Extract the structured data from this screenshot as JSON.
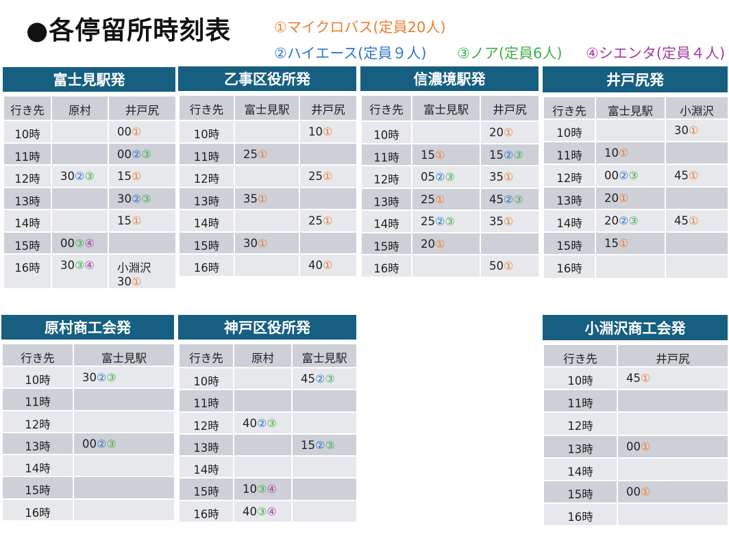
{
  "title": "●各停留所時刻表",
  "legend": [
    {
      "mark": "①",
      "label": "マイクロバス(定員20人)",
      "color": "#ed7d31"
    },
    {
      "mark": "②",
      "label": "ハイエース(定員９人)",
      "color": "#2f74c8"
    },
    {
      "mark": "③",
      "label": "ノア(定員6人)",
      "color": "#3fae49"
    },
    {
      "mark": "④",
      "label": "シエンタ(定員４人)",
      "color": "#a33aa3"
    }
  ],
  "tables": [
    {
      "title": "富士見駅発",
      "columns": [
        "行き先",
        "原村",
        "井戸尻"
      ],
      "rows": [
        [
          "10時",
          null,
          {
            "t": "00",
            "m": [
              "①"
            ]
          }
        ],
        [
          "11時",
          null,
          {
            "t": "00",
            "m": [
              "②",
              "③"
            ]
          }
        ],
        [
          "12時",
          {
            "t": "30",
            "m": [
              "②",
              "③"
            ]
          },
          {
            "t": "15",
            "m": [
              "①"
            ]
          }
        ],
        [
          "13時",
          null,
          {
            "t": "30",
            "m": [
              "②",
              "③"
            ]
          }
        ],
        [
          "14時",
          null,
          {
            "t": "15",
            "m": [
              "①"
            ]
          }
        ],
        [
          "15時",
          {
            "t": "00",
            "m": [
              "③",
              "④"
            ]
          },
          null
        ],
        [
          "16時",
          {
            "t": "30",
            "m": [
              "③",
              "④"
            ]
          },
          {
            "pre": "小淵沢",
            "t": "30",
            "m": [
              "①"
            ]
          }
        ]
      ]
    },
    {
      "title": "乙事区役所発",
      "columns": [
        "行き先",
        "富士見駅",
        "井戸尻"
      ],
      "rows": [
        [
          "10時",
          null,
          {
            "t": "10",
            "m": [
              "①"
            ]
          }
        ],
        [
          "11時",
          {
            "t": "25",
            "m": [
              "①"
            ]
          },
          null
        ],
        [
          "12時",
          null,
          {
            "t": "25",
            "m": [
              "①"
            ]
          }
        ],
        [
          "13時",
          {
            "t": "35",
            "m": [
              "①"
            ]
          },
          null
        ],
        [
          "14時",
          null,
          {
            "t": "25",
            "m": [
              "①"
            ]
          }
        ],
        [
          "15時",
          {
            "t": "30",
            "m": [
              "①"
            ]
          },
          null
        ],
        [
          "16時",
          null,
          {
            "t": "40",
            "m": [
              "①"
            ]
          }
        ]
      ]
    },
    {
      "title": "信濃境駅発",
      "columns": [
        "行き先",
        "富士見駅",
        "井戸尻"
      ],
      "rows": [
        [
          "10時",
          null,
          {
            "t": "20",
            "m": [
              "①"
            ]
          }
        ],
        [
          "11時",
          {
            "t": "15",
            "m": [
              "①"
            ]
          },
          {
            "t": "15",
            "m": [
              "②",
              "③"
            ]
          }
        ],
        [
          "12時",
          {
            "t": "05",
            "m": [
              "②",
              "③"
            ]
          },
          {
            "t": "35",
            "m": [
              "①"
            ]
          }
        ],
        [
          "13時",
          {
            "t": "25",
            "m": [
              "①"
            ]
          },
          {
            "t": "45",
            "m": [
              "②",
              "③"
            ]
          }
        ],
        [
          "14時",
          {
            "t": "25",
            "m": [
              "②",
              "③"
            ]
          },
          {
            "t": "35",
            "m": [
              "①"
            ]
          }
        ],
        [
          "15時",
          {
            "t": "20",
            "m": [
              "①"
            ]
          },
          null
        ],
        [
          "16時",
          null,
          {
            "t": "50",
            "m": [
              "①"
            ]
          }
        ]
      ]
    },
    {
      "title": "井戸尻発",
      "columns": [
        "行き先",
        "富士見駅",
        "小淵沢"
      ],
      "rows": [
        [
          "10時",
          null,
          {
            "t": "30",
            "m": [
              "①"
            ]
          }
        ],
        [
          "11時",
          {
            "t": "10",
            "m": [
              "①"
            ]
          },
          null
        ],
        [
          "12時",
          {
            "t": "00",
            "m": [
              "②",
              "③"
            ]
          },
          {
            "t": "45",
            "m": [
              "①"
            ]
          }
        ],
        [
          "13時",
          {
            "t": "20",
            "m": [
              "①"
            ]
          },
          null
        ],
        [
          "14時",
          {
            "t": "20",
            "m": [
              "②",
              "③"
            ]
          },
          {
            "t": "45",
            "m": [
              "①"
            ]
          }
        ],
        [
          "15時",
          {
            "t": "15",
            "m": [
              "①"
            ]
          },
          null
        ],
        [
          "16時",
          null,
          null
        ]
      ]
    },
    {
      "title": "原村商工会発",
      "columns": [
        "行き先",
        "富士見駅"
      ],
      "rows": [
        [
          "10時",
          {
            "t": "30",
            "m": [
              "②",
              "③"
            ]
          }
        ],
        [
          "11時",
          null
        ],
        [
          "12時",
          null
        ],
        [
          "13時",
          {
            "t": "00",
            "m": [
              "②",
              "③"
            ]
          }
        ],
        [
          "14時",
          null
        ],
        [
          "15時",
          null
        ],
        [
          "16時",
          null
        ]
      ]
    },
    {
      "title": "神戸区役所発",
      "columns": [
        "行き先",
        "原村",
        "富士見駅"
      ],
      "rows": [
        [
          "10時",
          null,
          {
            "t": "45",
            "m": [
              "②",
              "③"
            ]
          }
        ],
        [
          "11時",
          null,
          null
        ],
        [
          "12時",
          {
            "t": "40",
            "m": [
              "②",
              "③"
            ]
          },
          null
        ],
        [
          "13時",
          null,
          {
            "t": "15",
            "m": [
              "②",
              "③"
            ]
          }
        ],
        [
          "14時",
          null,
          null
        ],
        [
          "15時",
          {
            "t": "10",
            "m": [
              "③",
              "④"
            ]
          },
          null
        ],
        [
          "16時",
          {
            "t": "40",
            "m": [
              "③",
              "④"
            ]
          },
          null
        ]
      ]
    },
    {
      "title": "小淵沢商工会発",
      "columns": [
        "行き先",
        "井戸尻"
      ],
      "rows": [
        [
          "10時",
          {
            "t": "45",
            "m": [
              "①"
            ]
          }
        ],
        [
          "11時",
          null
        ],
        [
          "12時",
          null
        ],
        [
          "13時",
          {
            "t": "00",
            "m": [
              "①"
            ]
          }
        ],
        [
          "14時",
          null
        ],
        [
          "15時",
          {
            "t": "00",
            "m": [
              "①"
            ]
          }
        ],
        [
          "16時",
          null
        ]
      ]
    }
  ]
}
